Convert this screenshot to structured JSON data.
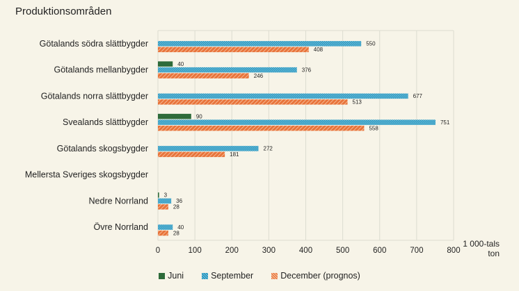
{
  "chart_data": {
    "type": "bar",
    "orientation": "horizontal",
    "title": "Produktionsområden",
    "categories": [
      "Götalands södra slättbygder",
      "Götalands mellanbygder",
      "Götalands norra slättbygder",
      "Svealands slättbygder",
      "Götalands skogsbygder",
      "Mellersta Sveriges skogsbygder",
      "Nedre Norrland",
      "Övre Norrland"
    ],
    "series": [
      {
        "name": "Juni",
        "color": "#2e6b3a",
        "pattern": "solid",
        "values": [
          null,
          40,
          null,
          90,
          null,
          null,
          3,
          null
        ]
      },
      {
        "name": "September",
        "color": "#1f8fb8",
        "pattern": "crosshatch",
        "values": [
          550,
          376,
          677,
          751,
          272,
          null,
          36,
          40
        ]
      },
      {
        "name": "December (prognos)",
        "color": "#e8743b",
        "pattern": "diagonal",
        "values": [
          408,
          246,
          513,
          558,
          181,
          null,
          28,
          28
        ]
      }
    ],
    "xlim": [
      0,
      800
    ],
    "xticks": [
      "0",
      "100",
      "200",
      "300",
      "400",
      "500",
      "600",
      "700",
      "800"
    ],
    "unit_label": [
      "1 000-tals",
      "ton"
    ],
    "grid": true,
    "legend_position": "bottom"
  }
}
